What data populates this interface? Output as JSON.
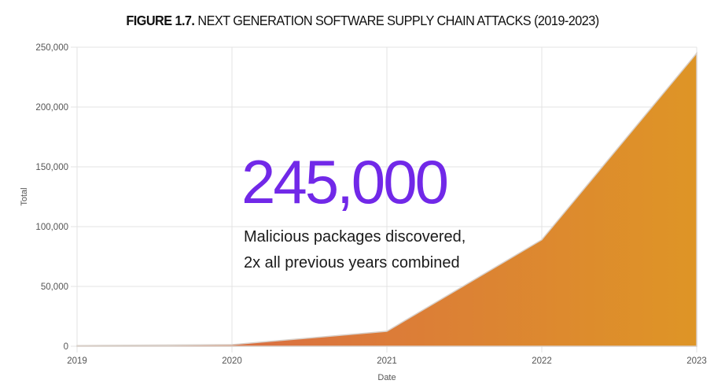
{
  "title": {
    "figure_label": "FIGURE 1.7.",
    "text": " NEXT GENERATION SOFTWARE SUPPLY CHAIN ATTACKS (2019-2023)"
  },
  "annotation": {
    "big_number": "245,000",
    "caption": "Malicious packages discovered, 2x all previous years combined"
  },
  "colors": {
    "area_start": "#d9624b",
    "area_end": "#de9526",
    "highlight": "#7128e8",
    "gridline": "#e3e3e3"
  },
  "chart_data": {
    "type": "area",
    "title": "FIGURE 1.7. NEXT GENERATION SOFTWARE SUPPLY CHAIN ATTACKS (2019-2023)",
    "xlabel": "Date",
    "ylabel": "Total",
    "categories": [
      "2019",
      "2020",
      "2021",
      "2022",
      "2023"
    ],
    "values": [
      500,
      1300,
      12500,
      89000,
      245000
    ],
    "ylim": [
      0,
      250000
    ],
    "yticks": [
      "0",
      "50,000",
      "100,000",
      "150,000",
      "200,000",
      "250,000"
    ],
    "grid": true,
    "legend": "none",
    "annotations": [
      "245,000",
      "Malicious packages discovered, 2x all previous years combined"
    ]
  }
}
